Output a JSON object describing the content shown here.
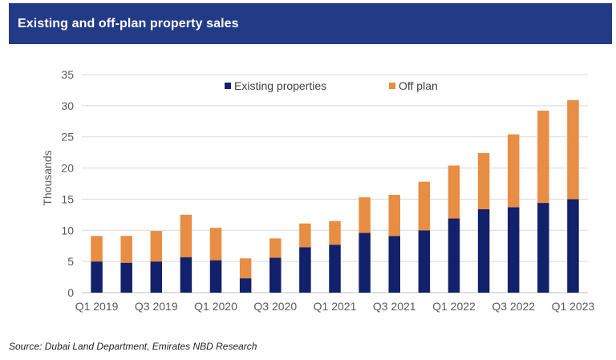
{
  "header": {
    "title": "Existing and off-plan property sales"
  },
  "source_note": "Source: Dubai Land Department, Emirates NBD Research",
  "chart_data": {
    "type": "bar",
    "stacked": true,
    "ylabel": "Thousands",
    "ylim": [
      0,
      35
    ],
    "yticks": [
      0,
      5,
      10,
      15,
      20,
      25,
      30,
      35
    ],
    "grid": true,
    "legend_position": "top",
    "categories": [
      "Q1 2019",
      "Q2 2019",
      "Q3 2019",
      "Q4 2019",
      "Q1 2020",
      "Q2 2020",
      "Q3 2020",
      "Q4 2020",
      "Q1 2021",
      "Q2 2021",
      "Q3 2021",
      "Q4 2021",
      "Q1 2022",
      "Q2 2022",
      "Q3 2022",
      "Q4 2022",
      "Q1 2023"
    ],
    "xtick_labels": [
      "Q1 2019",
      "",
      "Q3 2019",
      "",
      "Q1 2020",
      "",
      "Q3 2020",
      "",
      "Q1 2021",
      "",
      "Q3 2021",
      "",
      "Q1 2022",
      "",
      "Q3 2022",
      "",
      "Q1 2023"
    ],
    "series": [
      {
        "name": "Existing properties",
        "color": "#13206b",
        "values": [
          5.0,
          4.8,
          5.0,
          5.7,
          5.2,
          2.3,
          5.6,
          7.3,
          7.7,
          9.6,
          9.1,
          10.0,
          11.9,
          13.4,
          13.7,
          14.4,
          15.0
        ]
      },
      {
        "name": "Off plan",
        "color": "#e88d44",
        "values": [
          4.1,
          4.3,
          4.9,
          6.8,
          5.2,
          3.2,
          3.1,
          3.8,
          3.8,
          5.7,
          6.6,
          7.8,
          8.5,
          9.0,
          11.7,
          14.8,
          15.9
        ]
      }
    ]
  }
}
